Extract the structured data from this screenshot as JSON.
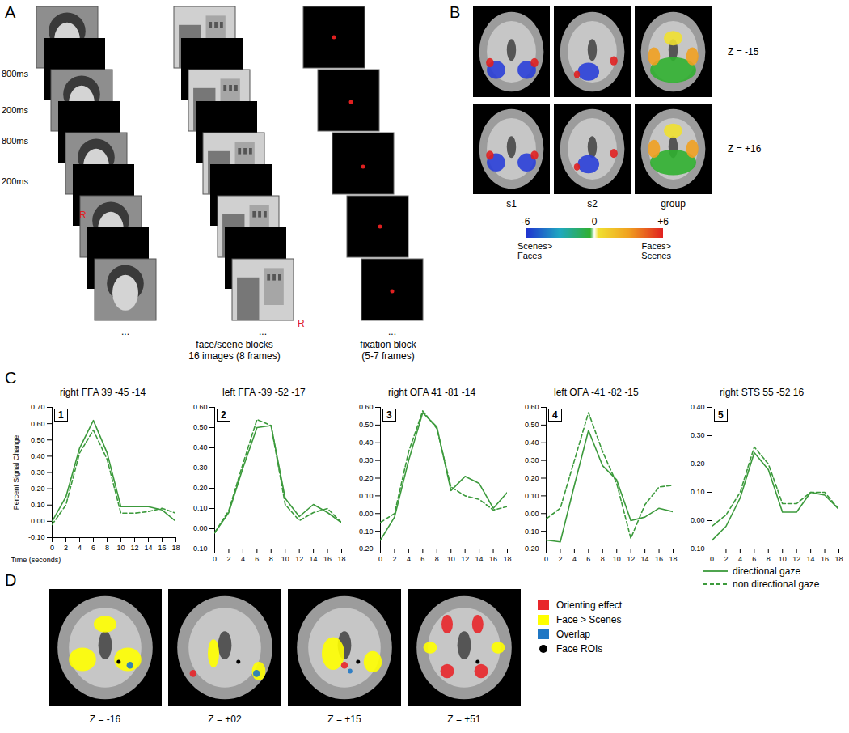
{
  "panel_labels": [
    "A",
    "B",
    "C",
    "D"
  ],
  "panel_a": {
    "timings": [
      "800ms",
      "200ms",
      "800ms",
      "200ms"
    ],
    "responses": [
      "R",
      "R"
    ],
    "ellipses": [
      "...",
      "...",
      "..."
    ],
    "face_scene_caption": [
      "face/scene blocks",
      "16 images (8 frames)"
    ],
    "fixation_caption": [
      "fixation block",
      "(5-7 frames)"
    ]
  },
  "panel_b": {
    "rows": [
      "Z = -15",
      "Z = +16"
    ],
    "columns": [
      "s1",
      "s2",
      "group"
    ],
    "colorbar": {
      "range": [
        -6,
        6
      ],
      "ticks": [
        -6,
        0,
        {
          "value": 6,
          "label": "+6"
        }
      ],
      "labels": [
        "Scenes> Faces",
        "Faces> Scenes"
      ]
    }
  },
  "chart_data": [
    {
      "type": "line",
      "title": "right FFA 39 -45 -14",
      "panel_number": "1",
      "x_label": "Time (seconds)",
      "y_label": "Percent Signal Change",
      "x": [
        0,
        2,
        4,
        6,
        8,
        10,
        12,
        14,
        16,
        18
      ],
      "xlim": [
        0,
        18
      ],
      "xticks": [
        0,
        2,
        4,
        6,
        8,
        10,
        12,
        14,
        16,
        18
      ],
      "ylim": [
        -0.1,
        0.7
      ],
      "yticks": [
        {
          "value": -0.1,
          "label": "-0.10"
        },
        {
          "value": 0,
          "label": "0.00"
        },
        {
          "value": 0.1,
          "label": "0.10"
        },
        {
          "value": 0.2,
          "label": "0.20"
        },
        {
          "value": 0.3,
          "label": "0.30"
        },
        {
          "value": 0.4,
          "label": "0.40"
        },
        {
          "value": 0.5,
          "label": "0.50"
        },
        {
          "value": 0.6,
          "label": "0.60"
        },
        {
          "value": 0.7,
          "label": "0.70"
        }
      ],
      "series": [
        {
          "name": "directional gaze",
          "color": "#3c9a3c",
          "line_style": "solid",
          "values": [
            0.0,
            0.15,
            0.45,
            0.62,
            0.42,
            0.09,
            0.09,
            0.09,
            0.07,
            0.0
          ]
        },
        {
          "name": "non directional gaze",
          "color": "#3c9a3c",
          "line_style": "dashed",
          "values": [
            -0.02,
            0.1,
            0.42,
            0.56,
            0.38,
            0.05,
            0.05,
            0.06,
            0.08,
            0.05
          ]
        }
      ]
    },
    {
      "type": "line",
      "title": "left FFA -39 -52 -17",
      "panel_number": "2",
      "x": [
        0,
        2,
        4,
        6,
        8,
        10,
        12,
        14,
        16,
        18
      ],
      "xlim": [
        0,
        18
      ],
      "xticks": [
        0,
        2,
        4,
        6,
        8,
        10,
        12,
        14,
        16,
        18
      ],
      "ylim": [
        -0.1,
        0.6
      ],
      "yticks": [
        {
          "value": -0.1,
          "label": "-0.10"
        },
        {
          "value": 0,
          "label": "0.00"
        },
        {
          "value": 0.1,
          "label": "0.10"
        },
        {
          "value": 0.2,
          "label": "0.20"
        },
        {
          "value": 0.3,
          "label": "0.30"
        },
        {
          "value": 0.4,
          "label": "0.40"
        },
        {
          "value": 0.5,
          "label": "0.50"
        },
        {
          "value": 0.6,
          "label": "0.60"
        }
      ],
      "series": [
        {
          "name": "directional gaze",
          "color": "#3c9a3c",
          "line_style": "solid",
          "values": [
            -0.02,
            0.08,
            0.3,
            0.5,
            0.51,
            0.15,
            0.06,
            0.12,
            0.08,
            0.03
          ]
        },
        {
          "name": "non directional gaze",
          "color": "#3c9a3c",
          "line_style": "dashed",
          "values": [
            -0.02,
            0.09,
            0.32,
            0.54,
            0.51,
            0.12,
            0.04,
            0.08,
            0.1,
            0.03
          ]
        }
      ]
    },
    {
      "type": "line",
      "title": "right OFA 41 -81 -14",
      "panel_number": "3",
      "x": [
        0,
        2,
        4,
        6,
        8,
        10,
        12,
        14,
        16,
        18
      ],
      "xlim": [
        0,
        18
      ],
      "xticks": [
        0,
        2,
        4,
        6,
        8,
        10,
        12,
        14,
        16,
        18
      ],
      "ylim": [
        -0.2,
        0.6
      ],
      "yticks": [
        {
          "value": -0.2,
          "label": "-0.20"
        },
        {
          "value": -0.1,
          "label": "-0.10"
        },
        {
          "value": 0,
          "label": "0.00"
        },
        {
          "value": 0.1,
          "label": "0.10"
        },
        {
          "value": 0.2,
          "label": "0.20"
        },
        {
          "value": 0.3,
          "label": "0.30"
        },
        {
          "value": 0.4,
          "label": "0.40"
        },
        {
          "value": 0.5,
          "label": "0.50"
        },
        {
          "value": 0.6,
          "label": "0.60"
        }
      ],
      "series": [
        {
          "name": "directional gaze",
          "color": "#3c9a3c",
          "line_style": "solid",
          "values": [
            -0.15,
            -0.02,
            0.3,
            0.57,
            0.49,
            0.13,
            0.21,
            0.17,
            0.03,
            0.12
          ]
        },
        {
          "name": "non directional gaze",
          "color": "#3c9a3c",
          "line_style": "dashed",
          "values": [
            -0.05,
            0.0,
            0.35,
            0.58,
            0.48,
            0.15,
            0.1,
            0.08,
            0.02,
            0.04
          ]
        }
      ]
    },
    {
      "type": "line",
      "title": "left OFA -41 -82 -15",
      "panel_number": "4",
      "x": [
        0,
        2,
        4,
        6,
        8,
        10,
        12,
        14,
        16,
        18
      ],
      "xlim": [
        0,
        18
      ],
      "xticks": [
        0,
        2,
        4,
        6,
        8,
        10,
        12,
        14,
        16,
        18
      ],
      "ylim": [
        -0.2,
        0.6
      ],
      "yticks": [
        {
          "value": -0.2,
          "label": "-0.20"
        },
        {
          "value": -0.1,
          "label": "-0.10"
        },
        {
          "value": 0,
          "label": "0.00"
        },
        {
          "value": 0.1,
          "label": "0.10"
        },
        {
          "value": 0.2,
          "label": "0.20"
        },
        {
          "value": 0.3,
          "label": "0.30"
        },
        {
          "value": 0.4,
          "label": "0.40"
        },
        {
          "value": 0.5,
          "label": "0.50"
        },
        {
          "value": 0.6,
          "label": "0.60"
        }
      ],
      "series": [
        {
          "name": "directional gaze",
          "color": "#3c9a3c",
          "line_style": "solid",
          "values": [
            -0.15,
            -0.16,
            0.16,
            0.47,
            0.27,
            0.19,
            -0.04,
            -0.02,
            0.03,
            0.01
          ]
        },
        {
          "name": "non directional gaze",
          "color": "#3c9a3c",
          "line_style": "dashed",
          "values": [
            -0.03,
            0.03,
            0.3,
            0.57,
            0.35,
            0.17,
            -0.14,
            0.05,
            0.15,
            0.16
          ]
        }
      ]
    },
    {
      "type": "line",
      "title": "right STS 55 -52 16",
      "panel_number": "5",
      "x": [
        0,
        2,
        4,
        6,
        8,
        10,
        12,
        14,
        16,
        18
      ],
      "xlim": [
        0,
        18
      ],
      "xticks": [
        0,
        2,
        4,
        6,
        8,
        10,
        12,
        14,
        16,
        18
      ],
      "ylim": [
        -0.1,
        0.4
      ],
      "yticks": [
        {
          "value": -0.1,
          "label": "-0.10"
        },
        {
          "value": 0,
          "label": "0.00"
        },
        {
          "value": 0.1,
          "label": "0.10"
        },
        {
          "value": 0.2,
          "label": "0.20"
        },
        {
          "value": 0.3,
          "label": "0.30"
        },
        {
          "value": 0.4,
          "label": "0.40"
        }
      ],
      "series": [
        {
          "name": "directional gaze",
          "color": "#3c9a3c",
          "line_style": "solid",
          "values": [
            -0.07,
            -0.02,
            0.08,
            0.24,
            0.18,
            0.03,
            0.03,
            0.1,
            0.09,
            0.04
          ]
        },
        {
          "name": "non directional gaze",
          "color": "#3c9a3c",
          "line_style": "dashed",
          "values": [
            -0.02,
            0.02,
            0.1,
            0.26,
            0.2,
            0.06,
            0.06,
            0.1,
            0.1,
            0.04
          ]
        }
      ]
    }
  ],
  "panel_d": {
    "slices": [
      "Z = -16",
      "Z = +02",
      "Z = +15",
      "Z = +51"
    ],
    "legend": [
      {
        "name": "Orienting effect",
        "color": "#e8262a"
      },
      {
        "name": "Face > Scenes",
        "color": "#ffff00"
      },
      {
        "name": "Overlap",
        "color": "#1f77c4"
      },
      {
        "name": "Face ROIs",
        "color": "#000000",
        "marker": "circle"
      }
    ]
  }
}
